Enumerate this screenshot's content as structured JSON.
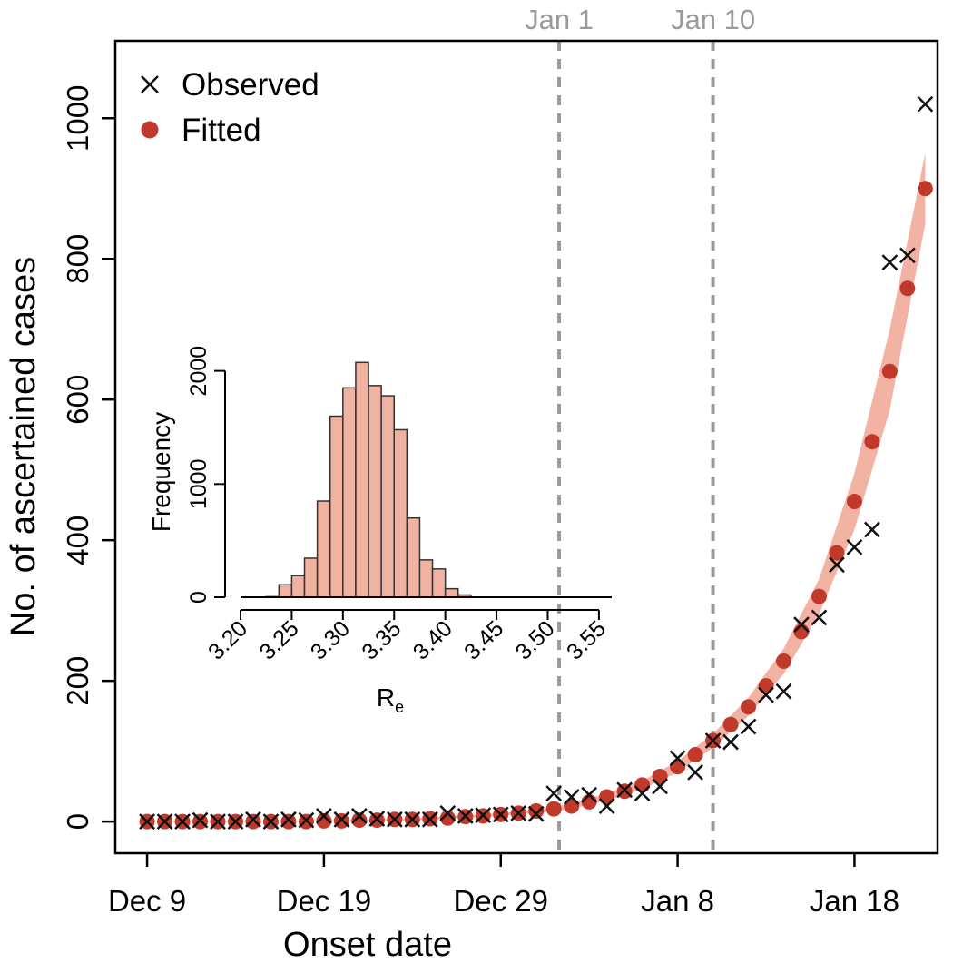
{
  "chart_data": [
    {
      "type": "scatter",
      "xlabel": "Onset date",
      "ylabel": "No. of ascertained cases",
      "x_start_date": "Dec 9",
      "x_ticks": [
        {
          "day": 0,
          "label": "Dec 9"
        },
        {
          "day": 10,
          "label": "Dec 19"
        },
        {
          "day": 20,
          "label": "Dec 29"
        },
        {
          "day": 30,
          "label": "Jan 8"
        },
        {
          "day": 40,
          "label": "Jan 18"
        }
      ],
      "xlim": [
        -1.8,
        44.7
      ],
      "ylim": [
        -45,
        1110
      ],
      "y_ticks": [
        0,
        200,
        400,
        600,
        800,
        1000
      ],
      "grid": false,
      "legend": {
        "position": "top-left",
        "observed_label": "Observed",
        "fitted_label": "Fitted"
      },
      "vertical_lines": [
        {
          "day": 23.3,
          "label": "Jan 1"
        },
        {
          "day": 32.0,
          "label": "Jan 10"
        }
      ],
      "series": [
        {
          "name": "Observed",
          "marker": "x",
          "color": "#111111",
          "points": [
            [
              0,
              0
            ],
            [
              1,
              0
            ],
            [
              2,
              0
            ],
            [
              3,
              2
            ],
            [
              4,
              0
            ],
            [
              5,
              0
            ],
            [
              6,
              3
            ],
            [
              7,
              0
            ],
            [
              8,
              3
            ],
            [
              9,
              2
            ],
            [
              10,
              8
            ],
            [
              11,
              3
            ],
            [
              12,
              8
            ],
            [
              13,
              4
            ],
            [
              14,
              3
            ],
            [
              15,
              3
            ],
            [
              16,
              3
            ],
            [
              17,
              12
            ],
            [
              18,
              8
            ],
            [
              19,
              9
            ],
            [
              20,
              10
            ],
            [
              21,
              12
            ],
            [
              22,
              11
            ],
            [
              23,
              40
            ],
            [
              24,
              35
            ],
            [
              25,
              38
            ],
            [
              26,
              22
            ],
            [
              27,
              45
            ],
            [
              28,
              40
            ],
            [
              29,
              50
            ],
            [
              30,
              90
            ],
            [
              31,
              70
            ],
            [
              32,
              115
            ],
            [
              33,
              113
            ],
            [
              34,
              135
            ],
            [
              35,
              180
            ],
            [
              36,
              185
            ],
            [
              37,
              280
            ],
            [
              38,
              290
            ],
            [
              39,
              365
            ],
            [
              40,
              390
            ],
            [
              41,
              415
            ],
            [
              42,
              795
            ],
            [
              43,
              805
            ],
            [
              44,
              1020
            ]
          ]
        },
        {
          "name": "Fitted",
          "marker": "dot",
          "color": "#c0392b",
          "points": [
            [
              0,
              0
            ],
            [
              1,
              0
            ],
            [
              2,
              0
            ],
            [
              3,
              0
            ],
            [
              4,
              0
            ],
            [
              5,
              0
            ],
            [
              6,
              0
            ],
            [
              7,
              0
            ],
            [
              8,
              0
            ],
            [
              9,
              0
            ],
            [
              10,
              1
            ],
            [
              11,
              1
            ],
            [
              12,
              2
            ],
            [
              13,
              2
            ],
            [
              14,
              3
            ],
            [
              15,
              3
            ],
            [
              16,
              4
            ],
            [
              17,
              5
            ],
            [
              18,
              7
            ],
            [
              19,
              8
            ],
            [
              20,
              10
            ],
            [
              21,
              12
            ],
            [
              22,
              15
            ],
            [
              23,
              18
            ],
            [
              24,
              22
            ],
            [
              25,
              28
            ],
            [
              26,
              35
            ],
            [
              27,
              43
            ],
            [
              28,
              52
            ],
            [
              29,
              64
            ],
            [
              30,
              78
            ],
            [
              31,
              95
            ],
            [
              32,
              115
            ],
            [
              33,
              138
            ],
            [
              34,
              163
            ],
            [
              35,
              193
            ],
            [
              36,
              228
            ],
            [
              37,
              270
            ],
            [
              38,
              320
            ],
            [
              39,
              382
            ],
            [
              40,
              455
            ],
            [
              41,
              540
            ],
            [
              42,
              640
            ],
            [
              43,
              758
            ],
            [
              44,
              900
            ]
          ]
        }
      ],
      "band": {
        "color": "#f2b2a4",
        "lower": [
          [
            0,
            0
          ],
          [
            5,
            0
          ],
          [
            10,
            1
          ],
          [
            15,
            2
          ],
          [
            20,
            8
          ],
          [
            22,
            12
          ],
          [
            24,
            18
          ],
          [
            26,
            30
          ],
          [
            28,
            46
          ],
          [
            30,
            70
          ],
          [
            32,
            105
          ],
          [
            34,
            150
          ],
          [
            36,
            210
          ],
          [
            38,
            295
          ],
          [
            40,
            415
          ],
          [
            42,
            585
          ],
          [
            44,
            850
          ]
        ],
        "upper": [
          [
            0,
            1
          ],
          [
            5,
            1
          ],
          [
            10,
            2
          ],
          [
            15,
            4
          ],
          [
            20,
            12
          ],
          [
            22,
            17
          ],
          [
            24,
            26
          ],
          [
            26,
            40
          ],
          [
            28,
            58
          ],
          [
            30,
            86
          ],
          [
            32,
            125
          ],
          [
            34,
            176
          ],
          [
            36,
            246
          ],
          [
            38,
            345
          ],
          [
            40,
            495
          ],
          [
            42,
            700
          ],
          [
            44,
            950
          ]
        ]
      }
    },
    {
      "type": "bar",
      "role": "inset-histogram",
      "xlabel": "R",
      "xlabel_subscript": "e",
      "ylabel": "Frequency",
      "bin_width": 0.0125,
      "bins_start": 3.2,
      "bins": [
        {
          "start": 3.2,
          "count": 0
        },
        {
          "start": 3.2125,
          "count": 0
        },
        {
          "start": 3.225,
          "count": 5
        },
        {
          "start": 3.2375,
          "count": 110
        },
        {
          "start": 3.25,
          "count": 190
        },
        {
          "start": 3.2625,
          "count": 345
        },
        {
          "start": 3.275,
          "count": 850
        },
        {
          "start": 3.2875,
          "count": 1600
        },
        {
          "start": 3.3,
          "count": 1850
        },
        {
          "start": 3.3125,
          "count": 2075
        },
        {
          "start": 3.325,
          "count": 1870
        },
        {
          "start": 3.3375,
          "count": 1780
        },
        {
          "start": 3.35,
          "count": 1480
        },
        {
          "start": 3.3625,
          "count": 700
        },
        {
          "start": 3.375,
          "count": 330
        },
        {
          "start": 3.3875,
          "count": 250
        },
        {
          "start": 3.4,
          "count": 75
        },
        {
          "start": 3.4125,
          "count": 20
        }
      ],
      "xlim": [
        3.2,
        3.5625
      ],
      "ylim": [
        0,
        2350
      ],
      "x_ticks": [
        "3.20",
        "3.25",
        "3.30",
        "3.35",
        "3.40",
        "3.45",
        "3.50",
        "3.55"
      ],
      "y_ticks": [
        0,
        1000,
        2000
      ],
      "grid": false,
      "bar_color": "#f0b3a2",
      "edge_color": "#333333"
    }
  ]
}
